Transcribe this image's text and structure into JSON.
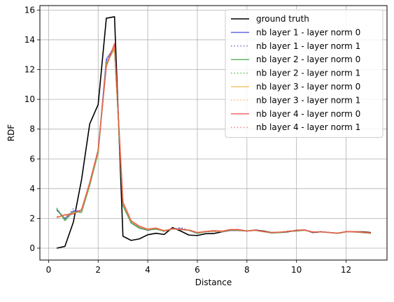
{
  "chart_data": {
    "type": "line",
    "title": "",
    "xlabel": "Distance",
    "ylabel": "RDF",
    "xlim": [
      -0.35,
      13.65
    ],
    "ylim": [
      -0.8,
      16.3
    ],
    "xticks": [
      0,
      2,
      4,
      6,
      8,
      10,
      12
    ],
    "yticks": [
      0,
      2,
      4,
      6,
      8,
      10,
      12,
      14,
      16
    ],
    "grid": true,
    "legend_position": "top-right",
    "series": [
      {
        "name": "ground truth",
        "color": "#000000",
        "dash": "solid",
        "width": 1.6,
        "x": [
          0.33,
          0.66,
          1.0,
          1.33,
          1.66,
          2.0,
          2.33,
          2.66,
          3.0,
          3.33,
          3.66,
          4.0,
          4.33,
          4.66,
          5.0,
          5.33,
          5.66,
          6.0,
          6.33,
          6.66,
          7.0,
          7.33,
          7.66,
          8.0,
          8.33,
          8.66,
          9.0,
          9.33,
          9.66,
          10.0,
          10.33,
          10.66,
          11.0,
          11.33,
          11.66,
          12.0,
          12.33,
          12.66,
          13.0
        ],
        "y": [
          0.0,
          0.12,
          1.75,
          4.6,
          8.35,
          9.65,
          15.45,
          15.55,
          0.8,
          0.52,
          0.62,
          0.9,
          1.0,
          0.92,
          1.38,
          1.15,
          0.88,
          0.85,
          0.97,
          0.98,
          1.1,
          1.2,
          1.2,
          1.15,
          1.22,
          1.15,
          1.05,
          1.05,
          1.1,
          1.2,
          1.22,
          1.05,
          1.1,
          1.05,
          1.0,
          1.1,
          1.1,
          1.1,
          1.05
        ]
      },
      {
        "name": "nb layer 1 - layer norm 0",
        "color": "#4040e0",
        "dash": "solid",
        "width": 1.5,
        "x": [
          0.33,
          0.66,
          1.0,
          1.33,
          1.66,
          2.0,
          2.33,
          2.66,
          3.0,
          3.33,
          3.66,
          4.0,
          4.33,
          4.66,
          5.0,
          5.33,
          5.66,
          6.0,
          6.33,
          6.66,
          7.0,
          7.33,
          7.66,
          8.0,
          8.33,
          8.66,
          9.0,
          9.33,
          9.66,
          10.0,
          10.33,
          10.66,
          11.0,
          11.33,
          11.66,
          12.0,
          12.33,
          12.66,
          13.0
        ],
        "y": [
          2.55,
          2.0,
          2.5,
          2.5,
          4.3,
          6.5,
          12.7,
          13.5,
          2.9,
          1.7,
          1.35,
          1.2,
          1.3,
          1.15,
          1.3,
          1.3,
          1.2,
          1.0,
          1.1,
          1.15,
          1.1,
          1.2,
          1.25,
          1.15,
          1.2,
          1.12,
          1.02,
          1.05,
          1.12,
          1.15,
          1.2,
          1.08,
          1.1,
          1.05,
          1.0,
          1.1,
          1.1,
          1.05,
          1.0
        ]
      },
      {
        "name": "nb layer 1 - layer norm 1",
        "color": "#6a3fcf",
        "dash": "dotted",
        "width": 1.5,
        "x": [
          0.33,
          0.66,
          1.0,
          1.33,
          1.66,
          2.0,
          2.33,
          2.66,
          3.0,
          3.33,
          3.66,
          4.0,
          4.33,
          4.66,
          5.0,
          5.33,
          5.66,
          6.0,
          6.33,
          6.66,
          7.0,
          7.33,
          7.66,
          8.0,
          8.33,
          8.66,
          9.0,
          9.33,
          9.66,
          10.0,
          10.33,
          10.66,
          11.0,
          11.33,
          11.66,
          12.0,
          12.33,
          12.66,
          13.0
        ],
        "y": [
          2.6,
          1.95,
          2.65,
          2.45,
          4.4,
          6.6,
          12.6,
          13.6,
          2.95,
          1.75,
          1.4,
          1.2,
          1.3,
          1.12,
          1.28,
          1.4,
          1.18,
          1.02,
          1.1,
          1.1,
          1.12,
          1.22,
          1.2,
          1.18,
          1.2,
          1.1,
          1.05,
          1.05,
          1.15,
          1.18,
          1.22,
          1.1,
          1.08,
          1.05,
          1.02,
          1.1,
          1.08,
          1.05,
          1.0
        ]
      },
      {
        "name": "nb layer 2 - layer norm 0",
        "color": "#3aa83a",
        "dash": "solid",
        "width": 1.5,
        "x": [
          0.33,
          0.66,
          1.0,
          1.33,
          1.66,
          2.0,
          2.33,
          2.66,
          3.0,
          3.33,
          3.66,
          4.0,
          4.33,
          4.66,
          5.0,
          5.33,
          5.66,
          6.0,
          6.33,
          6.66,
          7.0,
          7.33,
          7.66,
          8.0,
          8.33,
          8.66,
          9.0,
          9.33,
          9.66,
          10.0,
          10.33,
          10.66,
          11.0,
          11.33,
          11.66,
          12.0,
          12.33,
          12.66,
          13.0
        ],
        "y": [
          2.65,
          1.85,
          2.45,
          2.4,
          4.2,
          6.4,
          12.4,
          13.4,
          2.85,
          1.7,
          1.35,
          1.22,
          1.28,
          1.15,
          1.3,
          1.25,
          1.2,
          1.0,
          1.1,
          1.15,
          1.12,
          1.22,
          1.22,
          1.15,
          1.2,
          1.12,
          1.02,
          1.05,
          1.12,
          1.15,
          1.2,
          1.08,
          1.1,
          1.05,
          1.0,
          1.1,
          1.1,
          1.05,
          1.0
        ]
      },
      {
        "name": "nb layer 2 - layer norm 1",
        "color": "#3aa83a",
        "dash": "dotted",
        "width": 1.5,
        "x": [
          0.33,
          0.66,
          1.0,
          1.33,
          1.66,
          2.0,
          2.33,
          2.66,
          3.0,
          3.33,
          3.66,
          4.0,
          4.33,
          4.66,
          5.0,
          5.33,
          5.66,
          6.0,
          6.33,
          6.66,
          7.0,
          7.33,
          7.66,
          8.0,
          8.33,
          8.66,
          9.0,
          9.33,
          9.66,
          10.0,
          10.33,
          10.66,
          11.0,
          11.33,
          11.66,
          12.0,
          12.33,
          12.66,
          13.0
        ],
        "y": [
          2.7,
          1.9,
          2.4,
          2.45,
          4.25,
          6.45,
          12.5,
          13.45,
          2.9,
          1.72,
          1.38,
          1.2,
          1.3,
          1.12,
          1.3,
          1.3,
          1.18,
          1.02,
          1.1,
          1.12,
          1.1,
          1.2,
          1.22,
          1.16,
          1.2,
          1.1,
          1.04,
          1.05,
          1.14,
          1.16,
          1.2,
          1.08,
          1.1,
          1.05,
          1.0,
          1.1,
          1.08,
          1.05,
          1.0
        ]
      },
      {
        "name": "nb layer 3 - layer norm 0",
        "color": "#f5b942",
        "dash": "solid",
        "width": 1.5,
        "x": [
          0.33,
          0.66,
          1.0,
          1.33,
          1.66,
          2.0,
          2.33,
          2.66,
          3.0,
          3.33,
          3.66,
          4.0,
          4.33,
          4.66,
          5.0,
          5.33,
          5.66,
          6.0,
          6.33,
          6.66,
          7.0,
          7.33,
          7.66,
          8.0,
          8.33,
          8.66,
          9.0,
          9.33,
          9.66,
          10.0,
          10.33,
          10.66,
          11.0,
          11.33,
          11.66,
          12.0,
          12.33,
          12.66,
          13.0
        ],
        "y": [
          2.1,
          2.2,
          2.35,
          2.55,
          4.35,
          6.55,
          12.3,
          13.55,
          3.0,
          1.8,
          1.45,
          1.25,
          1.35,
          1.15,
          1.3,
          1.25,
          1.22,
          1.05,
          1.12,
          1.15,
          1.12,
          1.25,
          1.22,
          1.15,
          1.2,
          1.12,
          1.05,
          1.08,
          1.12,
          1.18,
          1.2,
          1.08,
          1.1,
          1.05,
          1.0,
          1.1,
          1.1,
          1.08,
          1.02
        ]
      },
      {
        "name": "nb layer 3 - layer norm 1",
        "color": "#f5b942",
        "dash": "dotted",
        "width": 1.5,
        "x": [
          0.33,
          0.66,
          1.0,
          1.33,
          1.66,
          2.0,
          2.33,
          2.66,
          3.0,
          3.33,
          3.66,
          4.0,
          4.33,
          4.66,
          5.0,
          5.33,
          5.66,
          6.0,
          6.33,
          6.66,
          7.0,
          7.33,
          7.66,
          8.0,
          8.33,
          8.66,
          9.0,
          9.33,
          9.66,
          10.0,
          10.33,
          10.66,
          11.0,
          11.33,
          11.66,
          12.0,
          12.33,
          12.66,
          13.0
        ],
        "y": [
          2.15,
          2.1,
          2.4,
          2.5,
          4.3,
          6.5,
          12.35,
          13.6,
          3.05,
          1.78,
          1.42,
          1.25,
          1.32,
          1.15,
          1.3,
          1.28,
          1.2,
          1.05,
          1.1,
          1.12,
          1.12,
          1.22,
          1.25,
          1.15,
          1.22,
          1.1,
          1.05,
          1.06,
          1.14,
          1.18,
          1.2,
          1.08,
          1.08,
          1.05,
          1.02,
          1.1,
          1.08,
          1.06,
          1.0
        ]
      },
      {
        "name": "nb layer 4 - layer norm 0",
        "color": "#e8453c",
        "dash": "solid",
        "width": 1.5,
        "x": [
          0.33,
          0.66,
          1.0,
          1.33,
          1.66,
          2.0,
          2.33,
          2.66,
          3.0,
          3.33,
          3.66,
          4.0,
          4.33,
          4.66,
          5.0,
          5.33,
          5.66,
          6.0,
          6.33,
          6.66,
          7.0,
          7.33,
          7.66,
          8.0,
          8.33,
          8.66,
          9.0,
          9.33,
          9.66,
          10.0,
          10.33,
          10.66,
          11.0,
          11.33,
          11.66,
          12.0,
          12.33,
          12.66,
          13.0
        ],
        "y": [
          2.05,
          2.25,
          2.3,
          2.6,
          4.4,
          6.6,
          12.2,
          13.75,
          3.1,
          1.85,
          1.48,
          1.28,
          1.35,
          1.18,
          1.3,
          1.25,
          1.22,
          1.05,
          1.12,
          1.18,
          1.15,
          1.25,
          1.25,
          1.15,
          1.2,
          1.12,
          1.05,
          1.08,
          1.12,
          1.2,
          1.22,
          1.08,
          1.1,
          1.05,
          1.0,
          1.12,
          1.1,
          1.08,
          1.02
        ]
      },
      {
        "name": "nb layer 4 - layer norm 1",
        "color": "#f06a6a",
        "dash": "dotted",
        "width": 1.5,
        "x": [
          0.33,
          0.66,
          1.0,
          1.33,
          1.66,
          2.0,
          2.33,
          2.66,
          3.0,
          3.33,
          3.66,
          4.0,
          4.33,
          4.66,
          5.0,
          5.33,
          5.66,
          6.0,
          6.33,
          6.66,
          7.0,
          7.33,
          7.66,
          8.0,
          8.33,
          8.66,
          9.0,
          9.33,
          9.66,
          10.0,
          10.33,
          10.66,
          11.0,
          11.33,
          11.66,
          12.0,
          12.33,
          12.66,
          13.0
        ],
        "y": [
          2.1,
          2.2,
          2.35,
          2.55,
          4.45,
          6.65,
          12.25,
          13.8,
          3.05,
          1.82,
          1.45,
          1.26,
          1.35,
          1.16,
          1.32,
          1.25,
          1.2,
          1.05,
          1.1,
          1.16,
          1.14,
          1.24,
          1.24,
          1.16,
          1.2,
          1.1,
          1.05,
          1.06,
          1.14,
          1.18,
          1.2,
          1.08,
          1.1,
          1.05,
          1.0,
          1.1,
          1.1,
          1.06,
          1.0
        ]
      }
    ]
  }
}
